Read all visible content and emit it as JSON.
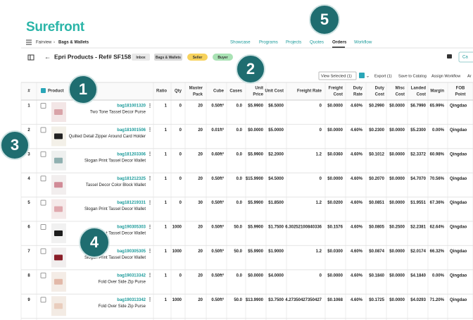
{
  "logo": "Surefront",
  "breadcrumb": [
    "Fairview",
    "Bags & Wallets"
  ],
  "nav": [
    "Showcase",
    "Programs",
    "Projects",
    "Quotes",
    "Orders",
    "Workflow"
  ],
  "header": {
    "title": "Epri Products - Ref# SF158",
    "tags": [
      "Inbox",
      "Bags & Wallets",
      "Seller",
      "Buyer"
    ],
    "button": "Ca"
  },
  "toolbar": [
    "View Selected (1)",
    "Export (1)",
    "Save to Catalog",
    "Assign Workflow",
    "Ar"
  ],
  "table": {
    "columns": [
      [
        "#"
      ],
      [
        "Product"
      ],
      [
        "Ratio"
      ],
      [
        "Qty"
      ],
      [
        "Master",
        "Pack"
      ],
      [
        "Cube"
      ],
      [
        "Cases"
      ],
      [
        "Unit",
        "Price"
      ],
      [
        "Unit Cost"
      ],
      [
        "Freight Rate"
      ],
      [
        "Freight",
        "Cost"
      ],
      [
        "Duty",
        "Rate"
      ],
      [
        "Duty",
        "Cost"
      ],
      [
        "Misc",
        "Cost"
      ],
      [
        "Landed",
        "Cost"
      ],
      [
        "Margin"
      ],
      [
        "FOB",
        "Point"
      ]
    ],
    "rows": [
      [
        "1",
        "bag181001320",
        "Two Tone Tassel Decor Purse",
        "1",
        "0",
        "20",
        "0.50ft³",
        "0.0",
        "$5.9900",
        "$6.5000",
        "0",
        "$0.0000",
        "4.60%",
        "$0.2990",
        "$0.0000",
        "$6.7990",
        "65.99%",
        "Qingdao"
      ],
      [
        "2",
        "bag181001506",
        "Quilted Detail Zipper Around Card Holder",
        "1",
        "0",
        "20",
        "0.01ft³",
        "0.0",
        "$0.0000",
        "$5.0000",
        "0",
        "$0.0000",
        "4.60%",
        "$0.2300",
        "$0.0000",
        "$5.2300",
        "0.00%",
        "Qingdao"
      ],
      [
        "3",
        "bag181203306",
        "Slogan Print Tassel Decor Wallet",
        "1",
        "0",
        "20",
        "0.60ft³",
        "0.0",
        "$5.9900",
        "$2.2000",
        "1.2",
        "$0.0360",
        "4.60%",
        "$0.1012",
        "$0.0000",
        "$2.3372",
        "60.98%",
        "Qingdao"
      ],
      [
        "4",
        "bag181212325",
        "Tassel Decor Color Block Wallet",
        "1",
        "0",
        "20",
        "0.50ft³",
        "0.0",
        "$15.9900",
        "$4.5000",
        "0",
        "$0.0000",
        "4.60%",
        "$0.2070",
        "$0.0000",
        "$4.7070",
        "70.56%",
        "Qingdao"
      ],
      [
        "5",
        "bag181219331",
        "Slogan Print Tassel Decor Wallet",
        "1",
        "0",
        "30",
        "0.50ft³",
        "0.0",
        "$5.9900",
        "$1.8500",
        "1.2",
        "$0.0200",
        "4.60%",
        "$0.0851",
        "$0.0000",
        "$1.9551",
        "67.36%",
        "Qingdao"
      ],
      [
        "6",
        "bag190305303",
        "Slogan Print Tassel Decor Wallet",
        "1",
        "1000",
        "20",
        "0.50ft³",
        "50.0",
        "$5.9900",
        "$1.7500",
        "6.30252100840336",
        "$0.1576",
        "4.60%",
        "$0.0805",
        "$0.2500",
        "$2.2381",
        "62.64%",
        "Qingdao"
      ],
      [
        "7",
        "bag190305305",
        "Slogan Print Tassel Decor Wallet",
        "1",
        "1000",
        "20",
        "0.50ft³",
        "50.0",
        "$5.9900",
        "$1.9000",
        "1.2",
        "$0.0300",
        "4.60%",
        "$0.0874",
        "$0.0000",
        "$2.0174",
        "66.32%",
        "Qingdao"
      ],
      [
        "8",
        "bag190313342",
        "Fold Over Side Zip Purse",
        "1",
        "0",
        "20",
        "0.50ft³",
        "0.0",
        "$0.0000",
        "$4.0000",
        "0",
        "$0.0000",
        "4.60%",
        "$0.1840",
        "$0.0000",
        "$4.1840",
        "0.00%",
        "Qingdao"
      ],
      [
        "9",
        "bag190313342",
        "Fold Over Side Zip Purse",
        "1",
        "1000",
        "20",
        "0.50ft³",
        "50.0",
        "$13.9900",
        "$3.7500",
        "4.27350427350427",
        "$0.1068",
        "4.60%",
        "$0.1725",
        "$0.0000",
        "$4.0293",
        "71.20%",
        "Qingdao"
      ]
    ]
  },
  "badges": [
    "1",
    "2",
    "3",
    "4",
    "5"
  ]
}
